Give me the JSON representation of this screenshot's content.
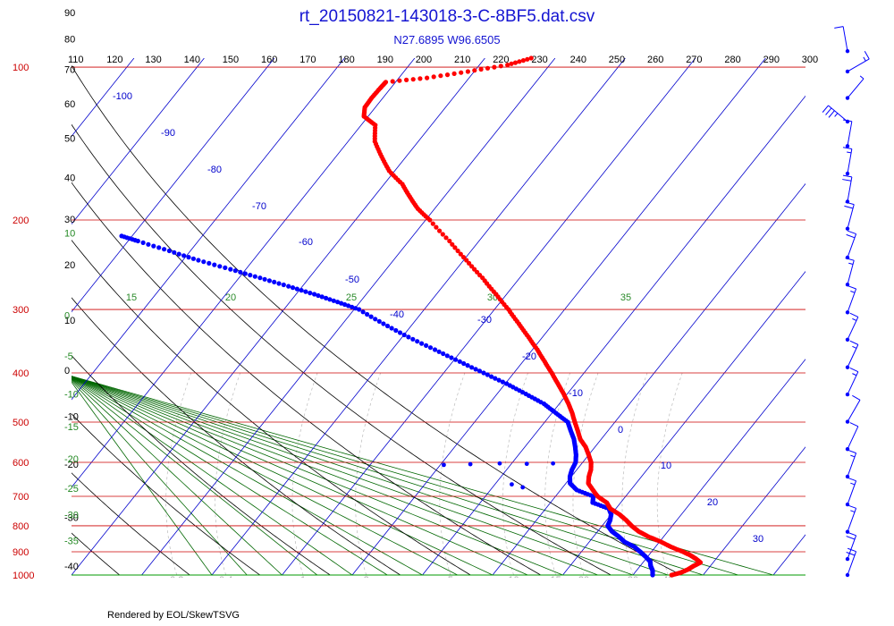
{
  "title": "rt_20150821-143018-3-C-8BF5.dat.csv",
  "subtitle": "N27.6895 W96.6505",
  "footer": "Rendered by EOL/SkewTSVG",
  "colors": {
    "temperature": "#ff0000",
    "dewpoint": "#0000ff",
    "isobar": "#cc0000",
    "isotherm": "#0000cc",
    "dry_adiabat": "#000000",
    "moist_adiabat": "#006600",
    "mixing_ratio": "#bbbbbb",
    "title": "#1414d2"
  },
  "chart_data": {
    "type": "skew-t",
    "pressure_axis": "log",
    "pressure_range_hPa": [
      100,
      1000
    ],
    "isobars_hPa": [
      100,
      200,
      300,
      400,
      500,
      600,
      700,
      800,
      900,
      1000
    ],
    "isobar_labels": [
      "100",
      "200",
      "300",
      "400",
      "500",
      "600",
      "700",
      "800",
      "900",
      "1000"
    ],
    "isotherms_C": [
      -100,
      -90,
      -80,
      -70,
      -60,
      -50,
      -40,
      -30,
      -20,
      -10,
      0,
      10,
      20,
      30
    ],
    "isotherm_labels": [
      "-100",
      "-90",
      "-80",
      "-70",
      "-60",
      "-50",
      "-40",
      "-30",
      "-20",
      "-10",
      "0",
      "10",
      "20",
      "30"
    ],
    "dry_adiabats_K": [
      110,
      120,
      130,
      140,
      150,
      160,
      170,
      180,
      190,
      200,
      210,
      220,
      230,
      240,
      250,
      260,
      270,
      280,
      290,
      300
    ],
    "dry_adiabat_labels": [
      "110",
      "120",
      "130",
      "140",
      "150",
      "160",
      "170",
      "180",
      "190",
      "200",
      "210",
      "220",
      "230",
      "240",
      "250",
      "260",
      "270",
      "280",
      "290",
      "300"
    ],
    "left_axis_labels": [
      {
        "text": "110",
        "p": 60
      },
      {
        "text": "100",
        "p": 68
      },
      {
        "text": "90",
        "p": 78
      },
      {
        "text": "80",
        "p": 88
      },
      {
        "text": "70",
        "p": 101
      },
      {
        "text": "60",
        "p": 118
      },
      {
        "text": "50",
        "p": 138
      },
      {
        "text": "40",
        "p": 165
      },
      {
        "text": "30",
        "p": 199
      },
      {
        "text": "20",
        "p": 245
      },
      {
        "text": "10",
        "p": 315
      },
      {
        "text": "0",
        "p": 395
      },
      {
        "text": "-10",
        "p": 487
      },
      {
        "text": "-20",
        "p": 605
      },
      {
        "text": "-30",
        "p": 770
      },
      {
        "text": "-40",
        "p": 960
      },
      {
        "text": "10",
        "p": 212
      },
      {
        "text": "0",
        "p": 308
      },
      {
        "text": "-5",
        "p": 370
      },
      {
        "text": "-10",
        "p": 440
      },
      {
        "text": "-15",
        "p": 510
      },
      {
        "text": "-20",
        "p": 590
      },
      {
        "text": "-25",
        "p": 675
      },
      {
        "text": "-30",
        "p": 760
      },
      {
        "text": "-35",
        "p": 855
      }
    ],
    "moist_adiabat_labels": [
      "15",
      "20",
      "25",
      "30",
      "35"
    ],
    "moist_adiabats_C": [
      15,
      20,
      25,
      30,
      35
    ],
    "mixing_ratio_labels": [
      "0.2",
      "0.4",
      "1",
      "2",
      "5",
      "10",
      "15",
      "20",
      "30",
      "40"
    ],
    "mixing_ratio_ticks": [
      {
        "text": "0.2",
        "T": -45
      },
      {
        "text": "0.4",
        "T": -38
      },
      {
        "text": "1",
        "T": -27
      },
      {
        "text": "2",
        "T": -18
      },
      {
        "text": "5",
        "T": -6
      },
      {
        "text": "10",
        "T": 3
      },
      {
        "text": "15",
        "T": 9
      },
      {
        "text": "20",
        "T": 13
      },
      {
        "text": "30",
        "T": 20
      },
      {
        "text": "40",
        "T": 25
      }
    ],
    "temperature": [
      {
        "p": 1000,
        "T": 25.5
      },
      {
        "p": 990,
        "T": 26.5
      },
      {
        "p": 975,
        "T": 27.2
      },
      {
        "p": 960,
        "T": 27.6
      },
      {
        "p": 945,
        "T": 28.2
      },
      {
        "p": 930,
        "T": 27.2
      },
      {
        "p": 915,
        "T": 26.0
      },
      {
        "p": 900,
        "T": 24.5
      },
      {
        "p": 880,
        "T": 22.2
      },
      {
        "p": 860,
        "T": 20.2
      },
      {
        "p": 840,
        "T": 17.8
      },
      {
        "p": 820,
        "T": 15.8
      },
      {
        "p": 800,
        "T": 14.2
      },
      {
        "p": 780,
        "T": 12.8
      },
      {
        "p": 760,
        "T": 11.2
      },
      {
        "p": 740,
        "T": 9.2
      },
      {
        "p": 720,
        "T": 8.0
      },
      {
        "p": 700,
        "T": 6.0
      },
      {
        "p": 680,
        "T": 4.6
      },
      {
        "p": 660,
        "T": 3.2
      },
      {
        "p": 640,
        "T": 2.5
      },
      {
        "p": 620,
        "T": 2.0
      },
      {
        "p": 600,
        "T": 1.2
      },
      {
        "p": 580,
        "T": 0.0
      },
      {
        "p": 560,
        "T": -1.3
      },
      {
        "p": 540,
        "T": -3.0
      },
      {
        "p": 520,
        "T": -4.3
      },
      {
        "p": 500,
        "T": -5.7
      },
      {
        "p": 480,
        "T": -7.1
      },
      {
        "p": 460,
        "T": -8.7
      },
      {
        "p": 440,
        "T": -10.5
      },
      {
        "p": 420,
        "T": -12.5
      },
      {
        "p": 400,
        "T": -14.6
      },
      {
        "p": 380,
        "T": -16.9
      },
      {
        "p": 360,
        "T": -19.3
      },
      {
        "p": 340,
        "T": -22.0
      },
      {
        "p": 320,
        "T": -24.9
      },
      {
        "p": 300,
        "T": -28.0
      },
      {
        "p": 280,
        "T": -31.5
      },
      {
        "p": 260,
        "T": -35.3
      },
      {
        "p": 240,
        "T": -39.6
      },
      {
        "p": 220,
        "T": -44.2
      },
      {
        "p": 200,
        "T": -49.4
      },
      {
        "p": 190,
        "T": -52.4
      },
      {
        "p": 180,
        "T": -54.9
      },
      {
        "p": 170,
        "T": -57.4
      },
      {
        "p": 160,
        "T": -60.8
      },
      {
        "p": 150,
        "T": -63.5
      },
      {
        "p": 140,
        "T": -66.2
      },
      {
        "p": 130,
        "T": -68.0
      },
      {
        "p": 125,
        "T": -70.6
      },
      {
        "p": 120,
        "T": -71.5
      },
      {
        "p": 115,
        "T": -71.6
      },
      {
        "p": 110,
        "T": -71.5
      },
      {
        "p": 107,
        "T": -71.4
      },
      {
        "p": 105,
        "T": -66.0
      },
      {
        "p": 102,
        "T": -60.9
      },
      {
        "p": 99,
        "T": -56.0
      },
      {
        "p": 96,
        "T": -53.4
      }
    ],
    "dewpoint": [
      {
        "p": 1000,
        "T": 22.8
      },
      {
        "p": 980,
        "T": 22.3
      },
      {
        "p": 960,
        "T": 21.5
      },
      {
        "p": 940,
        "T": 20.9
      },
      {
        "p": 920,
        "T": 19.7
      },
      {
        "p": 900,
        "T": 18.4
      },
      {
        "p": 880,
        "T": 17.0
      },
      {
        "p": 860,
        "T": 15.0
      },
      {
        "p": 840,
        "T": 13.6
      },
      {
        "p": 820,
        "T": 12.0
      },
      {
        "p": 800,
        "T": 10.8
      },
      {
        "p": 780,
        "T": 10.5
      },
      {
        "p": 760,
        "T": 10.0
      },
      {
        "p": 740,
        "T": 9.0
      },
      {
        "p": 720,
        "T": 6.0
      },
      {
        "p": 700,
        "T": 5.4
      },
      {
        "p": 680,
        "T": 2.3
      },
      {
        "p": 660,
        "T": 0.6
      },
      {
        "p": 640,
        "T": -0.2
      },
      {
        "p": 620,
        "T": -0.7
      },
      {
        "p": 600,
        "T": -1.0
      },
      {
        "p": 580,
        "T": -1.8
      },
      {
        "p": 560,
        "T": -2.8
      },
      {
        "p": 540,
        "T": -3.9
      },
      {
        "p": 520,
        "T": -5.3
      },
      {
        "p": 500,
        "T": -6.7
      },
      {
        "p": 480,
        "T": -9.4
      },
      {
        "p": 460,
        "T": -12.2
      },
      {
        "p": 440,
        "T": -15.9
      },
      {
        "p": 420,
        "T": -19.8
      },
      {
        "p": 400,
        "T": -24.3
      },
      {
        "p": 380,
        "T": -29.0
      },
      {
        "p": 360,
        "T": -33.9
      },
      {
        "p": 340,
        "T": -39.1
      },
      {
        "p": 320,
        "T": -44.2
      },
      {
        "p": 300,
        "T": -49.3
      },
      {
        "p": 290,
        "T": -53.2
      },
      {
        "p": 280,
        "T": -57.4
      },
      {
        "p": 270,
        "T": -62.0
      },
      {
        "p": 260,
        "T": -67.0
      },
      {
        "p": 250,
        "T": -72.2
      },
      {
        "p": 240,
        "T": -77.8
      },
      {
        "p": 230,
        "T": -83.0
      },
      {
        "p": 220,
        "T": -88.6
      },
      {
        "p": 215,
        "T": -91.5
      }
    ],
    "dewpoint_scatter": [
      {
        "p": 607,
        "T": -19.5
      },
      {
        "p": 605,
        "T": -15.8
      },
      {
        "p": 603,
        "T": -11.7
      },
      {
        "p": 604,
        "T": -7.8
      },
      {
        "p": 603,
        "T": -4.1
      },
      {
        "p": 663,
        "T": -7.6
      },
      {
        "p": 672,
        "T": -5.7
      }
    ],
    "wind_barbs": [
      {
        "p": 93,
        "dir": 350,
        "spd": 10
      },
      {
        "p": 102,
        "dir": 60,
        "spd": 15
      },
      {
        "p": 115,
        "dir": 40,
        "spd": 5
      },
      {
        "p": 128,
        "dir": 310,
        "spd": 35
      },
      {
        "p": 143,
        "dir": 10,
        "spd": 10
      },
      {
        "p": 162,
        "dir": 10,
        "spd": 15
      },
      {
        "p": 184,
        "dir": 10,
        "spd": 20
      },
      {
        "p": 208,
        "dir": 15,
        "spd": 20
      },
      {
        "p": 237,
        "dir": 20,
        "spd": 20
      },
      {
        "p": 268,
        "dir": 15,
        "spd": 15
      },
      {
        "p": 304,
        "dir": 20,
        "spd": 15
      },
      {
        "p": 344,
        "dir": 25,
        "spd": 15
      },
      {
        "p": 390,
        "dir": 25,
        "spd": 15
      },
      {
        "p": 441,
        "dir": 25,
        "spd": 15
      },
      {
        "p": 499,
        "dir": 30,
        "spd": 10
      },
      {
        "p": 565,
        "dir": 25,
        "spd": 10
      },
      {
        "p": 640,
        "dir": 20,
        "spd": 15
      },
      {
        "p": 726,
        "dir": 20,
        "spd": 15
      },
      {
        "p": 822,
        "dir": 20,
        "spd": 15
      },
      {
        "p": 930,
        "dir": 20,
        "spd": 20
      },
      {
        "p": 1000,
        "dir": 20,
        "spd": 20
      }
    ]
  }
}
